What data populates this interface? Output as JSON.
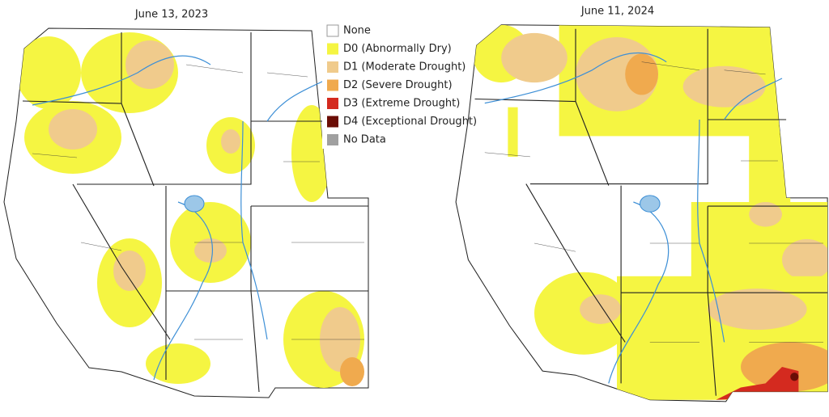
{
  "maps": [
    {
      "title": "June 13, 2023"
    },
    {
      "title": "June 11, 2024"
    }
  ],
  "legend": {
    "items": [
      {
        "label": "None",
        "color": "#ffffff"
      },
      {
        "label": "D0 (Abnormally Dry)",
        "color": "#f5f542"
      },
      {
        "label": "D1 (Moderate Drought)",
        "color": "#f0cb8c"
      },
      {
        "label": "D2 (Severe Drought)",
        "color": "#f0aa4e"
      },
      {
        "label": "D3 (Extreme Drought)",
        "color": "#d42a1f"
      },
      {
        "label": "D4 (Exceptional Drought)",
        "color": "#6b0d06"
      },
      {
        "label": "No Data",
        "color": "#a0a0a0"
      }
    ]
  }
}
